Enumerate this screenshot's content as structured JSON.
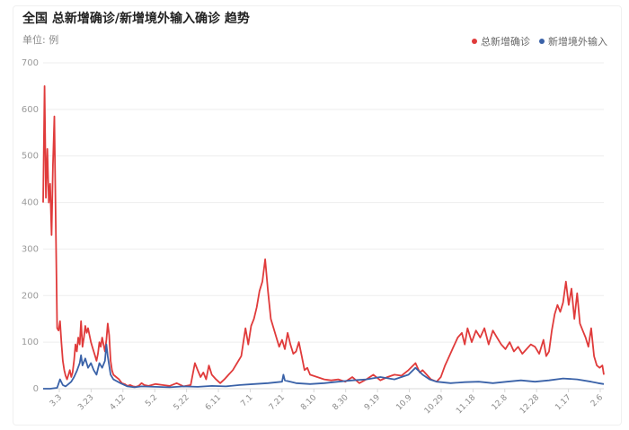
{
  "header": {
    "title": "全国 总新增确诊/新增境外输入确诊 趋势",
    "unit": "单位: 例"
  },
  "colors": {
    "total": "#e03b3b",
    "imported": "#3a62a8",
    "grid": "#eeeeee"
  },
  "chart_data": {
    "type": "line",
    "title": "全国 总新增确诊/新增境外输入确诊 趋势",
    "ylabel": "单位: 例",
    "ylim": [
      0,
      700
    ],
    "yticks": [
      0,
      100,
      200,
      300,
      400,
      500,
      600,
      700
    ],
    "x_range": [
      "2.21",
      "2.9"
    ],
    "xticks": [
      "3.3",
      "3.23",
      "4.12",
      "5.2",
      "5.22",
      "6.11",
      "7.1",
      "7.21",
      "8.10",
      "8.30",
      "9.19",
      "10.9",
      "10.29",
      "11.18",
      "12.8",
      "12.28",
      "1.17",
      "2.6"
    ],
    "legend_position": "top-right",
    "grid": true,
    "series": [
      {
        "name": "总新增确诊",
        "color": "#e03b3b",
        "points": [
          [
            0,
            400
          ],
          [
            1,
            650
          ],
          [
            2,
            410
          ],
          [
            3,
            515
          ],
          [
            4,
            400
          ],
          [
            5,
            440
          ],
          [
            6,
            330
          ],
          [
            7,
            480
          ],
          [
            8,
            585
          ],
          [
            9,
            350
          ],
          [
            10,
            130
          ],
          [
            11,
            125
          ],
          [
            12,
            145
          ],
          [
            13,
            100
          ],
          [
            14,
            60
          ],
          [
            15,
            40
          ],
          [
            16,
            28
          ],
          [
            17,
            20
          ],
          [
            18,
            30
          ],
          [
            19,
            40
          ],
          [
            20,
            25
          ],
          [
            21,
            35
          ],
          [
            22,
            60
          ],
          [
            23,
            95
          ],
          [
            24,
            80
          ],
          [
            25,
            110
          ],
          [
            26,
            95
          ],
          [
            27,
            145
          ],
          [
            28,
            90
          ],
          [
            29,
            110
          ],
          [
            30,
            135
          ],
          [
            31,
            120
          ],
          [
            32,
            130
          ],
          [
            33,
            115
          ],
          [
            34,
            100
          ],
          [
            35,
            90
          ],
          [
            36,
            80
          ],
          [
            37,
            70
          ],
          [
            38,
            60
          ],
          [
            39,
            75
          ],
          [
            40,
            100
          ],
          [
            41,
            90
          ],
          [
            42,
            110
          ],
          [
            43,
            95
          ],
          [
            44,
            80
          ],
          [
            45,
            105
          ],
          [
            46,
            140
          ],
          [
            47,
            115
          ],
          [
            48,
            60
          ],
          [
            49,
            40
          ],
          [
            50,
            30
          ],
          [
            52,
            25
          ],
          [
            54,
            20
          ],
          [
            56,
            12
          ],
          [
            58,
            10
          ],
          [
            60,
            6
          ],
          [
            62,
            8
          ],
          [
            64,
            5
          ],
          [
            66,
            4
          ],
          [
            68,
            6
          ],
          [
            70,
            12
          ],
          [
            72,
            8
          ],
          [
            75,
            6
          ],
          [
            80,
            10
          ],
          [
            85,
            8
          ],
          [
            90,
            6
          ],
          [
            95,
            12
          ],
          [
            100,
            5
          ],
          [
            105,
            8
          ],
          [
            108,
            55
          ],
          [
            110,
            40
          ],
          [
            112,
            25
          ],
          [
            114,
            35
          ],
          [
            116,
            20
          ],
          [
            118,
            50
          ],
          [
            120,
            30
          ],
          [
            123,
            20
          ],
          [
            126,
            12
          ],
          [
            129,
            20
          ],
          [
            132,
            30
          ],
          [
            135,
            40
          ],
          [
            138,
            55
          ],
          [
            141,
            70
          ],
          [
            144,
            130
          ],
          [
            146,
            95
          ],
          [
            148,
            135
          ],
          [
            150,
            150
          ],
          [
            152,
            175
          ],
          [
            154,
            210
          ],
          [
            156,
            230
          ],
          [
            158,
            278
          ],
          [
            160,
            210
          ],
          [
            162,
            150
          ],
          [
            164,
            130
          ],
          [
            166,
            110
          ],
          [
            168,
            90
          ],
          [
            170,
            105
          ],
          [
            172,
            85
          ],
          [
            174,
            120
          ],
          [
            176,
            95
          ],
          [
            178,
            75
          ],
          [
            180,
            80
          ],
          [
            182,
            100
          ],
          [
            184,
            70
          ],
          [
            186,
            40
          ],
          [
            188,
            45
          ],
          [
            190,
            30
          ],
          [
            195,
            25
          ],
          [
            200,
            20
          ],
          [
            205,
            18
          ],
          [
            210,
            20
          ],
          [
            215,
            15
          ],
          [
            220,
            25
          ],
          [
            225,
            12
          ],
          [
            230,
            20
          ],
          [
            235,
            30
          ],
          [
            240,
            18
          ],
          [
            245,
            25
          ],
          [
            250,
            30
          ],
          [
            255,
            28
          ],
          [
            260,
            40
          ],
          [
            265,
            55
          ],
          [
            268,
            35
          ],
          [
            270,
            40
          ],
          [
            273,
            30
          ],
          [
            276,
            20
          ],
          [
            280,
            15
          ],
          [
            283,
            25
          ],
          [
            286,
            50
          ],
          [
            289,
            70
          ],
          [
            292,
            90
          ],
          [
            295,
            110
          ],
          [
            298,
            120
          ],
          [
            300,
            95
          ],
          [
            302,
            130
          ],
          [
            305,
            100
          ],
          [
            308,
            125
          ],
          [
            311,
            110
          ],
          [
            314,
            130
          ],
          [
            317,
            95
          ],
          [
            320,
            125
          ],
          [
            323,
            110
          ],
          [
            326,
            95
          ],
          [
            329,
            85
          ],
          [
            332,
            100
          ],
          [
            335,
            80
          ],
          [
            338,
            90
          ],
          [
            341,
            75
          ],
          [
            344,
            85
          ],
          [
            347,
            95
          ],
          [
            350,
            90
          ],
          [
            353,
            75
          ],
          [
            356,
            105
          ],
          [
            358,
            70
          ],
          [
            360,
            80
          ],
          [
            362,
            125
          ],
          [
            364,
            160
          ],
          [
            366,
            180
          ],
          [
            368,
            165
          ],
          [
            370,
            185
          ],
          [
            372,
            230
          ],
          [
            374,
            180
          ],
          [
            376,
            215
          ],
          [
            378,
            150
          ],
          [
            380,
            205
          ],
          [
            382,
            140
          ],
          [
            384,
            125
          ],
          [
            386,
            110
          ],
          [
            388,
            90
          ],
          [
            390,
            130
          ],
          [
            392,
            70
          ],
          [
            394,
            50
          ],
          [
            396,
            45
          ],
          [
            398,
            50
          ],
          [
            399,
            30
          ]
        ]
      },
      {
        "name": "新增境外输入",
        "color": "#3a62a8",
        "points": [
          [
            0,
            0
          ],
          [
            5,
            0
          ],
          [
            10,
            2
          ],
          [
            12,
            20
          ],
          [
            14,
            8
          ],
          [
            16,
            5
          ],
          [
            18,
            10
          ],
          [
            20,
            15
          ],
          [
            22,
            25
          ],
          [
            24,
            38
          ],
          [
            26,
            55
          ],
          [
            27,
            72
          ],
          [
            28,
            50
          ],
          [
            30,
            65
          ],
          [
            32,
            45
          ],
          [
            34,
            55
          ],
          [
            36,
            40
          ],
          [
            38,
            30
          ],
          [
            40,
            55
          ],
          [
            42,
            45
          ],
          [
            44,
            60
          ],
          [
            45,
            95
          ],
          [
            46,
            70
          ],
          [
            48,
            30
          ],
          [
            50,
            20
          ],
          [
            55,
            12
          ],
          [
            60,
            5
          ],
          [
            65,
            3
          ],
          [
            70,
            5
          ],
          [
            80,
            4
          ],
          [
            90,
            3
          ],
          [
            100,
            5
          ],
          [
            110,
            4
          ],
          [
            120,
            6
          ],
          [
            130,
            5
          ],
          [
            140,
            8
          ],
          [
            150,
            10
          ],
          [
            160,
            12
          ],
          [
            170,
            15
          ],
          [
            171,
            30
          ],
          [
            172,
            18
          ],
          [
            180,
            12
          ],
          [
            190,
            10
          ],
          [
            200,
            12
          ],
          [
            210,
            15
          ],
          [
            220,
            18
          ],
          [
            230,
            20
          ],
          [
            240,
            25
          ],
          [
            250,
            20
          ],
          [
            260,
            30
          ],
          [
            265,
            45
          ],
          [
            270,
            30
          ],
          [
            275,
            20
          ],
          [
            280,
            15
          ],
          [
            290,
            12
          ],
          [
            300,
            14
          ],
          [
            310,
            15
          ],
          [
            320,
            12
          ],
          [
            330,
            15
          ],
          [
            340,
            18
          ],
          [
            350,
            15
          ],
          [
            360,
            18
          ],
          [
            370,
            22
          ],
          [
            380,
            20
          ],
          [
            390,
            15
          ],
          [
            395,
            12
          ],
          [
            399,
            10
          ]
        ]
      }
    ]
  }
}
